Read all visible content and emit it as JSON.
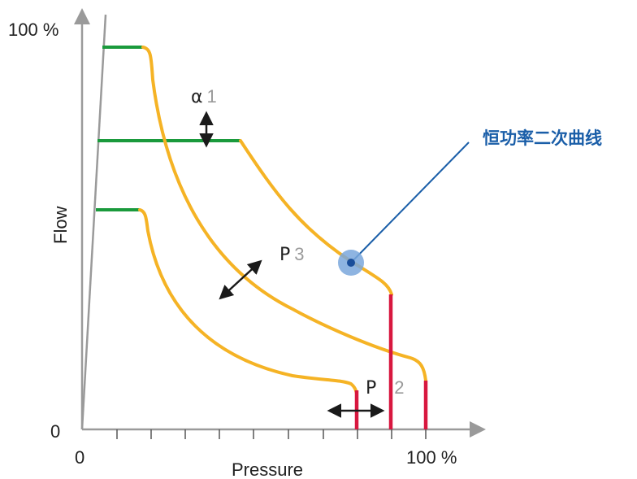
{
  "axes": {
    "y_label": "Flow",
    "x_label": "Pressure",
    "y_max_label": "100 %",
    "x_max_label": "100 %",
    "y_origin_label": "0",
    "x_origin_label": "0"
  },
  "parameters": [
    {
      "symbol": "α",
      "index": "1"
    },
    {
      "symbol": "P",
      "index": "3"
    },
    {
      "symbol": "P",
      "index": "2"
    }
  ],
  "callout": {
    "text": "恒功率二次曲线"
  },
  "colors": {
    "axis": "#9a9a9a",
    "flow_limit": "#1a9a3c",
    "power_curve": "#f5b325",
    "pressure_cutoff": "#d8173f",
    "arrow": "#1a1a1a",
    "callout": "#1a5ea8",
    "marker": "#7aa7dc"
  },
  "icons": {
    "arrow_vertical": "double-arrow-vertical-icon",
    "arrow_diagonal": "double-arrow-diagonal-icon",
    "arrow_horizontal": "double-arrow-horizontal-icon"
  }
}
